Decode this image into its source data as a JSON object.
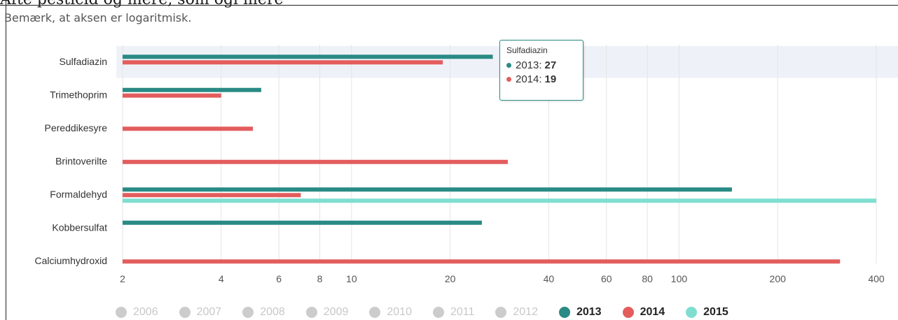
{
  "header": {
    "cut_title": "Åfte pesticid og mere, som ogl mere",
    "note": "Bemærk, at aksen er logaritmisk."
  },
  "chart_data": {
    "type": "bar",
    "orientation": "horizontal",
    "x_scale": "log",
    "xlim": [
      2,
      400
    ],
    "x_ticks": [
      2,
      4,
      6,
      8,
      10,
      20,
      40,
      60,
      80,
      100,
      200,
      400
    ],
    "categories": [
      "Sulfadiazin",
      "Trimethoprim",
      "Pereddikesyre",
      "Brintoverilte",
      "Formaldehyd",
      "Kobbersulfat",
      "Calciumhydroxid"
    ],
    "series": [
      {
        "name": "2013",
        "color": "#2a8a85",
        "values": [
          27,
          5.3,
          null,
          null,
          145,
          25,
          null
        ]
      },
      {
        "name": "2014",
        "color": "#e35d5d",
        "values": [
          19,
          4,
          5,
          30,
          7,
          null,
          310
        ]
      },
      {
        "name": "2015",
        "color": "#7fded0",
        "values": [
          null,
          null,
          null,
          null,
          400,
          null,
          null
        ]
      }
    ],
    "highlighted_category": "Sulfadiazin",
    "grid": true,
    "legend": {
      "placement": "bottom",
      "items": [
        {
          "label": "2006",
          "color": "#cccccc",
          "state": "hidden"
        },
        {
          "label": "2007",
          "color": "#cccccc",
          "state": "hidden"
        },
        {
          "label": "2008",
          "color": "#cccccc",
          "state": "hidden"
        },
        {
          "label": "2009",
          "color": "#cccccc",
          "state": "hidden"
        },
        {
          "label": "2010",
          "color": "#cccccc",
          "state": "hidden"
        },
        {
          "label": "2011",
          "color": "#cccccc",
          "state": "hidden"
        },
        {
          "label": "2012",
          "color": "#cccccc",
          "state": "hidden"
        },
        {
          "label": "2013",
          "color": "#2a8a85",
          "state": "active"
        },
        {
          "label": "2014",
          "color": "#e35d5d",
          "state": "active"
        },
        {
          "label": "2015",
          "color": "#7fded0",
          "state": "active"
        }
      ]
    },
    "tooltip": {
      "title": "Sulfadiazin",
      "rows": [
        {
          "label": "2013:",
          "value": "27",
          "color": "#2a8a85"
        },
        {
          "label": "2014:",
          "value": "19",
          "color": "#e35d5d"
        }
      ]
    }
  }
}
